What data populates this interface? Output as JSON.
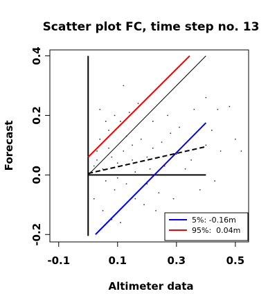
{
  "chart_data": {
    "type": "scatter",
    "title": "Scatter plot FC, time step no. 13",
    "xlabel": "Altimeter data",
    "ylabel": "Forecast",
    "xlim": [
      -0.13,
      0.545
    ],
    "ylim": [
      -0.225,
      0.42
    ],
    "x_ticks": [
      -0.1,
      0.1,
      0.3,
      0.5
    ],
    "x_tick_labels": [
      "-0.1",
      "0.1",
      "0.3",
      "0.5"
    ],
    "y_ticks": [
      -0.2,
      0.0,
      0.2,
      0.4
    ],
    "y_tick_labels": [
      "-0.2",
      "0.0",
      "0.2",
      "0.4"
    ],
    "grid": false,
    "point_color": "#333333",
    "points": [
      [
        0.02,
        0.03
      ],
      [
        0.01,
        0.01
      ],
      [
        0.03,
        0.05
      ],
      [
        0.05,
        0.02
      ],
      [
        0.08,
        0.06
      ],
      [
        0.1,
        0.04
      ],
      [
        0.12,
        0.08
      ],
      [
        0.15,
        0.1
      ],
      [
        0.18,
        0.12
      ],
      [
        0.2,
        0.06
      ],
      [
        0.22,
        0.09
      ],
      [
        0.25,
        0.11
      ],
      [
        0.28,
        0.14
      ],
      [
        0.3,
        0.07
      ],
      [
        0.06,
        -0.02
      ],
      [
        0.09,
        -0.05
      ],
      [
        0.13,
        -0.03
      ],
      [
        0.16,
        -0.08
      ],
      [
        0.19,
        -0.1
      ],
      [
        0.24,
        -0.06
      ],
      [
        0.04,
        0.12
      ],
      [
        0.07,
        0.15
      ],
      [
        0.11,
        0.18
      ],
      [
        0.14,
        0.21
      ],
      [
        0.17,
        0.24
      ],
      [
        0.12,
        0.3
      ],
      [
        0.04,
        0.22
      ],
      [
        0.35,
        0.05
      ],
      [
        0.4,
        0.1
      ],
      [
        0.45,
        0.08
      ],
      [
        0.5,
        0.12
      ],
      [
        0.52,
        0.08
      ],
      [
        0.43,
        -0.02
      ],
      [
        0.38,
        -0.05
      ],
      [
        0.33,
        0.02
      ],
      [
        0.02,
        -0.08
      ],
      [
        0.05,
        -0.12
      ],
      [
        0.08,
        -0.15
      ],
      [
        0.11,
        -0.16
      ],
      [
        0.21,
        0.02
      ],
      [
        0.26,
        0.03
      ],
      [
        0.16,
        0.01
      ],
      [
        0.1,
        -0.01
      ],
      [
        0.07,
        0.09
      ],
      [
        0.03,
        0.08
      ],
      [
        0.13,
        0.13
      ],
      [
        0.22,
        0.18
      ],
      [
        0.27,
        0.2
      ],
      [
        0.31,
        0.16
      ],
      [
        0.36,
        0.22
      ],
      [
        0.4,
        0.26
      ],
      [
        0.44,
        0.22
      ],
      [
        0.48,
        0.23
      ],
      [
        0.42,
        0.15
      ],
      [
        0.09,
        0.2
      ],
      [
        0.06,
        0.18
      ],
      [
        0.15,
        0.05
      ],
      [
        0.2,
        -0.03
      ],
      [
        0.23,
        -0.12
      ],
      [
        0.29,
        -0.08
      ]
    ],
    "lines": [
      {
        "name": "",
        "color": "#000000",
        "style": "solid",
        "width": 2,
        "points": [
          [
            0.0,
            -0.205
          ],
          [
            0.0,
            0.4
          ]
        ]
      },
      {
        "name": "",
        "color": "#000000",
        "style": "solid",
        "width": 2,
        "points": [
          [
            0.0,
            0.0
          ],
          [
            0.4,
            0.0
          ]
        ]
      },
      {
        "name": "",
        "color": "#000000",
        "style": "solid",
        "width": 1,
        "points": [
          [
            0.0,
            0.0
          ],
          [
            0.4,
            0.4
          ]
        ]
      },
      {
        "name": "",
        "color": "#000000",
        "style": "dashed",
        "width": 2,
        "points": [
          [
            0.0,
            0.005
          ],
          [
            0.4,
            0.095
          ]
        ]
      },
      {
        "name": "",
        "color": "#ee0000",
        "style": "solid",
        "width": 2,
        "points": [
          [
            0.0,
            0.06
          ],
          [
            0.345,
            0.4
          ]
        ]
      },
      {
        "name": "",
        "color": "#0000ee",
        "style": "solid",
        "width": 2,
        "points": [
          [
            0.025,
            -0.2
          ],
          [
            0.4,
            0.175
          ]
        ]
      }
    ],
    "legend": {
      "position": "bottom-right",
      "entries": [
        {
          "label": "5%: -0.16m",
          "color": "#0000ee"
        },
        {
          "label": "95%:  0.04m",
          "color": "#ee0000"
        }
      ]
    }
  }
}
